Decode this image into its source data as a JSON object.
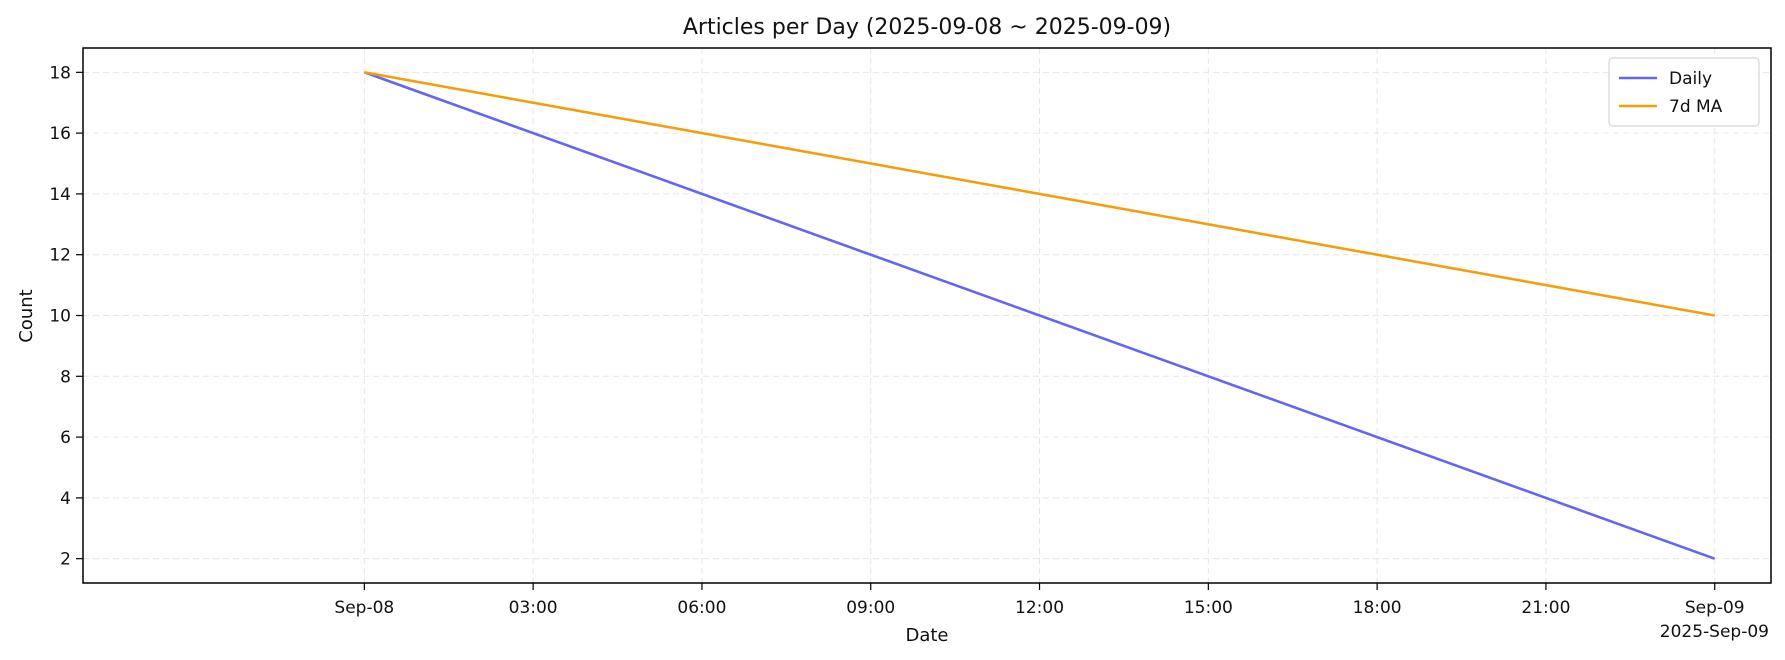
{
  "chart_data": {
    "type": "line",
    "title": "Articles per Day (2025-09-08 ~ 2025-09-09)",
    "xlabel": "Date",
    "ylabel": "Count",
    "x": [
      "2025-09-08",
      "2025-09-09"
    ],
    "xlim": [
      "2025-09-07 19:00",
      "2025-09-09 01:00"
    ],
    "x_ticks": [
      {
        "value": "2025-09-08 00:00",
        "label": "Sep-08"
      },
      {
        "value": "2025-09-08 03:00",
        "label": "03:00"
      },
      {
        "value": "2025-09-08 06:00",
        "label": "06:00"
      },
      {
        "value": "2025-09-08 09:00",
        "label": "09:00"
      },
      {
        "value": "2025-09-08 12:00",
        "label": "12:00"
      },
      {
        "value": "2025-09-08 15:00",
        "label": "15:00"
      },
      {
        "value": "2025-09-08 18:00",
        "label": "18:00"
      },
      {
        "value": "2025-09-08 21:00",
        "label": "21:00"
      },
      {
        "value": "2025-09-09 00:00",
        "label": "Sep-09"
      }
    ],
    "x_offset_label": "2025-Sep-09",
    "ylim": [
      1.2,
      18.8
    ],
    "y_ticks": [
      2,
      4,
      6,
      8,
      10,
      12,
      14,
      16,
      18
    ],
    "series": [
      {
        "name": "Daily",
        "values": [
          18,
          2
        ],
        "color": "#6366f1"
      },
      {
        "name": "7d MA",
        "values": [
          18,
          10
        ],
        "color": "#f59e0b"
      }
    ],
    "grid": true,
    "legend_position": "top-right"
  }
}
